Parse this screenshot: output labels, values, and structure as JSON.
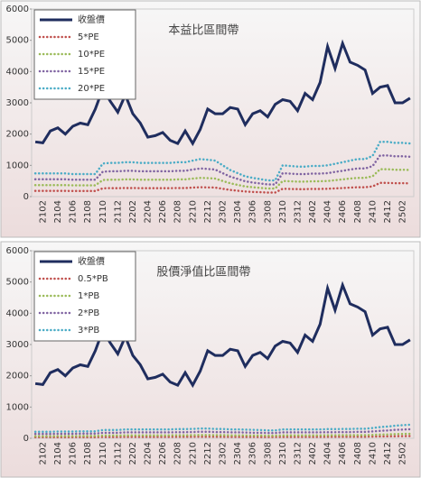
{
  "chart_data": [
    {
      "type": "line",
      "title": "本益比區間帶",
      "categories": [
        null,
        "2102",
        null,
        "2104",
        null,
        "2106",
        null,
        "2108",
        null,
        "2110",
        null,
        "2112",
        null,
        "2202",
        null,
        "2204",
        null,
        "2206",
        null,
        "2208",
        null,
        "2210",
        null,
        "2212",
        null,
        "2302",
        null,
        "2304",
        null,
        "2306",
        null,
        "2308",
        null,
        "2310",
        null,
        "2312",
        null,
        "2402",
        null,
        "2404",
        null,
        "2406",
        null,
        "2408",
        null,
        "2410",
        null,
        "2412",
        null,
        "2502",
        null
      ],
      "ylim": [
        0,
        6000
      ],
      "yticks": [
        0,
        1000,
        2000,
        3000,
        4000,
        5000,
        6000
      ],
      "legend": "top-left",
      "series": [
        {
          "name": "收盤價",
          "color": "#1f2d5e",
          "style": "solid",
          "values": [
            1750,
            1720,
            2100,
            2200,
            2000,
            2250,
            2350,
            2300,
            2800,
            3450,
            3050,
            2700,
            3250,
            2650,
            2350,
            1900,
            1950,
            2050,
            1800,
            1700,
            2100,
            1700,
            2150,
            2800,
            2650,
            2650,
            2850,
            2800,
            2300,
            2650,
            2750,
            2550,
            2950,
            3100,
            3050,
            2750,
            3300,
            3100,
            3650,
            4800,
            4100,
            4900,
            4300,
            4200,
            4050,
            3300,
            3500,
            3550,
            3000,
            3000,
            3150
          ]
        },
        {
          "name": "5*PE",
          "color": "#c0504d",
          "style": "dotted",
          "values": [
            185,
            185,
            185,
            185,
            185,
            180,
            180,
            180,
            180,
            265,
            270,
            270,
            275,
            275,
            270,
            270,
            270,
            270,
            270,
            275,
            275,
            288,
            300,
            295,
            288,
            250,
            213,
            188,
            163,
            150,
            140,
            130,
            130,
            250,
            245,
            240,
            240,
            245,
            245,
            250,
            263,
            275,
            288,
            300,
            300,
            325,
            438,
            438,
            430,
            430,
            425
          ]
        },
        {
          "name": "10*PE",
          "color": "#9bbb59",
          "style": "dotted",
          "values": [
            370,
            370,
            370,
            370,
            370,
            360,
            360,
            360,
            360,
            530,
            540,
            540,
            550,
            550,
            540,
            540,
            540,
            540,
            540,
            550,
            550,
            576,
            600,
            590,
            576,
            500,
            426,
            376,
            326,
            300,
            280,
            260,
            260,
            500,
            490,
            480,
            480,
            490,
            490,
            500,
            526,
            550,
            576,
            600,
            600,
            650,
            876,
            876,
            860,
            860,
            850
          ]
        },
        {
          "name": "15*PE",
          "color": "#8064a2",
          "style": "dotted",
          "values": [
            555,
            555,
            555,
            555,
            555,
            540,
            540,
            540,
            540,
            795,
            810,
            810,
            825,
            825,
            810,
            810,
            810,
            810,
            810,
            825,
            825,
            864,
            900,
            885,
            864,
            750,
            639,
            564,
            489,
            450,
            420,
            390,
            390,
            750,
            735,
            720,
            720,
            735,
            735,
            750,
            789,
            825,
            864,
            900,
            900,
            975,
            1314,
            1314,
            1290,
            1290,
            1275
          ]
        },
        {
          "name": "20*PE",
          "color": "#4bacc6",
          "style": "dotted",
          "values": [
            740,
            740,
            740,
            740,
            740,
            720,
            720,
            720,
            720,
            1060,
            1080,
            1080,
            1100,
            1100,
            1080,
            1080,
            1080,
            1080,
            1080,
            1100,
            1100,
            1150,
            1200,
            1180,
            1150,
            1000,
            850,
            750,
            650,
            600,
            560,
            520,
            520,
            1000,
            980,
            960,
            960,
            980,
            980,
            1000,
            1050,
            1100,
            1150,
            1200,
            1200,
            1300,
            1750,
            1750,
            1720,
            1720,
            1700
          ]
        }
      ]
    },
    {
      "type": "line",
      "title": "股價淨值比區間帶",
      "categories": [
        null,
        "2102",
        null,
        "2104",
        null,
        "2106",
        null,
        "2108",
        null,
        "2110",
        null,
        "2112",
        null,
        "2202",
        null,
        "2204",
        null,
        "2206",
        null,
        "2208",
        null,
        "2210",
        null,
        "2212",
        null,
        "2302",
        null,
        "2304",
        null,
        "2306",
        null,
        "2308",
        null,
        "2310",
        null,
        "2312",
        null,
        "2402",
        null,
        "2404",
        null,
        "2406",
        null,
        "2408",
        null,
        "2410",
        null,
        "2412",
        null,
        "2502",
        null
      ],
      "ylim": [
        0,
        6000
      ],
      "yticks": [
        0,
        1000,
        2000,
        3000,
        4000,
        5000,
        6000
      ],
      "legend": "top-left",
      "series": [
        {
          "name": "收盤價",
          "color": "#1f2d5e",
          "style": "solid",
          "values": [
            1750,
            1720,
            2100,
            2200,
            2000,
            2250,
            2350,
            2300,
            2800,
            3450,
            3050,
            2700,
            3250,
            2650,
            2350,
            1900,
            1950,
            2050,
            1800,
            1700,
            2100,
            1700,
            2150,
            2800,
            2650,
            2650,
            2850,
            2800,
            2300,
            2650,
            2750,
            2550,
            2950,
            3100,
            3050,
            2750,
            3300,
            3100,
            3650,
            4800,
            4100,
            4900,
            4300,
            4200,
            4050,
            3300,
            3500,
            3550,
            3000,
            3000,
            3150
          ]
        },
        {
          "name": "0.5*PB",
          "color": "#c0504d",
          "style": "dotted",
          "values": [
            35,
            35,
            35,
            36,
            36,
            36,
            37.5,
            37.5,
            37.5,
            44,
            44,
            44,
            47.5,
            47.5,
            47.5,
            47.5,
            47.5,
            47.5,
            47.5,
            49,
            49,
            50,
            52.5,
            52.5,
            50,
            50,
            47.5,
            47.5,
            46,
            45,
            44,
            42.5,
            42.5,
            47.5,
            47.5,
            47.5,
            47.5,
            47.5,
            47.5,
            49,
            49,
            50,
            50,
            51,
            51,
            55,
            60,
            62.5,
            67.5,
            70,
            72.5
          ]
        },
        {
          "name": "1*PB",
          "color": "#9bbb59",
          "style": "dotted",
          "values": [
            70,
            70,
            70,
            72,
            72,
            72,
            75,
            75,
            75,
            88,
            88,
            88,
            95,
            95,
            95,
            95,
            95,
            95,
            95,
            98,
            98,
            100,
            105,
            105,
            100,
            100,
            95,
            95,
            92,
            90,
            88,
            85,
            85,
            95,
            95,
            95,
            95,
            95,
            95,
            98,
            98,
            100,
            100,
            102,
            102,
            110,
            120,
            125,
            135,
            140,
            145
          ]
        },
        {
          "name": "2*PB",
          "color": "#8064a2",
          "style": "dotted",
          "values": [
            140,
            140,
            140,
            144,
            144,
            144,
            150,
            150,
            150,
            176,
            176,
            176,
            190,
            190,
            190,
            190,
            190,
            190,
            190,
            196,
            196,
            200,
            210,
            210,
            200,
            200,
            190,
            190,
            184,
            180,
            176,
            170,
            170,
            190,
            190,
            190,
            190,
            190,
            190,
            196,
            196,
            200,
            200,
            204,
            204,
            220,
            240,
            250,
            270,
            280,
            290
          ]
        },
        {
          "name": "3*PB",
          "color": "#4bacc6",
          "style": "dotted",
          "values": [
            210,
            210,
            210,
            216,
            216,
            216,
            225,
            225,
            225,
            264,
            264,
            264,
            285,
            285,
            285,
            285,
            285,
            285,
            285,
            294,
            294,
            300,
            315,
            315,
            300,
            300,
            285,
            285,
            276,
            270,
            264,
            255,
            255,
            285,
            285,
            285,
            285,
            285,
            285,
            294,
            294,
            300,
            300,
            306,
            306,
            330,
            360,
            375,
            405,
            420,
            435
          ]
        }
      ]
    }
  ]
}
